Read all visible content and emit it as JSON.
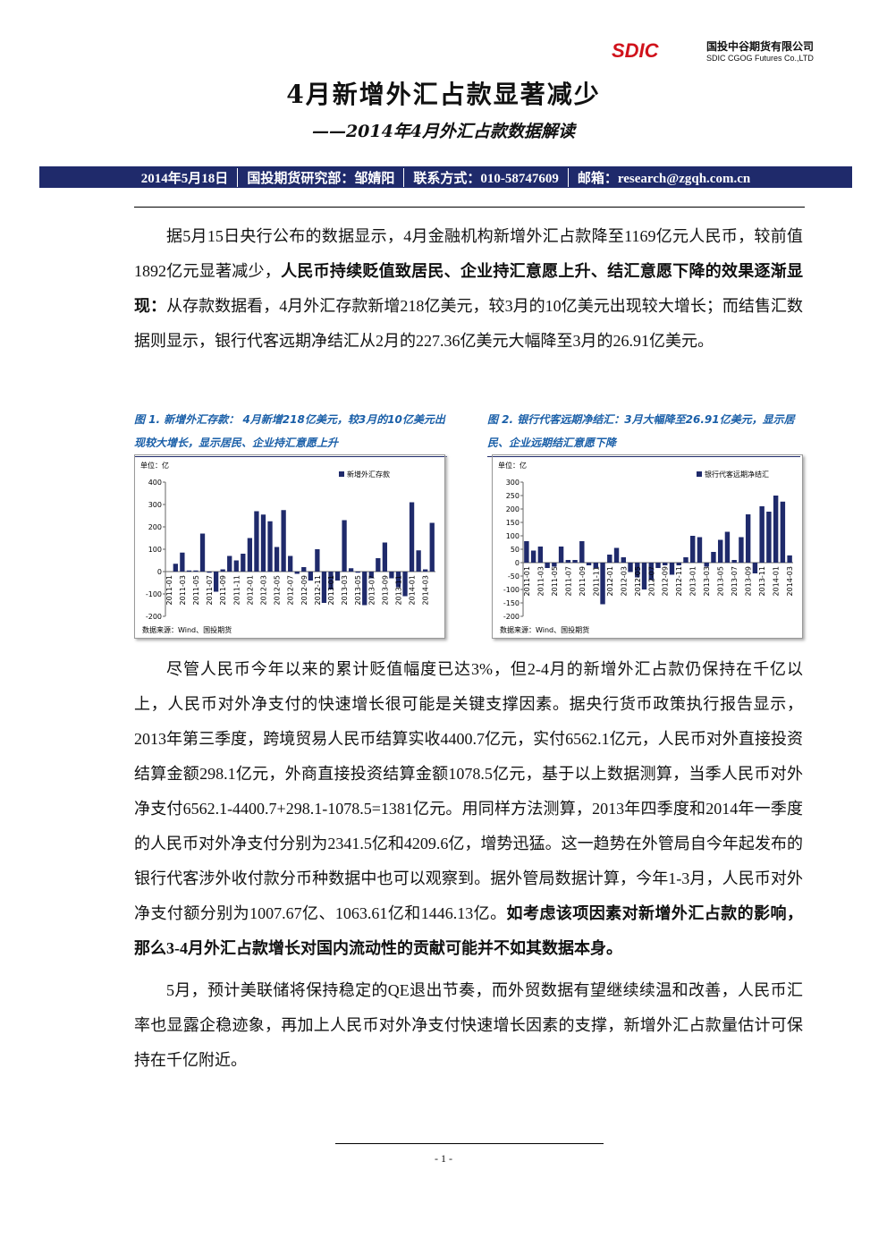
{
  "header": {
    "logo": "SDIC",
    "company_cn": "国投中谷期货有限公司",
    "company_en": "SDIC CGOG Futures Co.,LTD"
  },
  "title": "4月新增外汇占款显著减少",
  "subtitle": "——2014年4月外汇占款数据解读",
  "info_bar": [
    "2014年5月18日",
    "国投期货研究部：邹婧阳",
    "联系方式：010-58747609",
    "邮箱：research@zgqh.com.cn"
  ],
  "body_top": [
    [
      {
        "text": "据5月15日央行公布的数据显示，4月金融机构新增外汇占款降至1169亿元人民币，较前值1892亿元显著减少，"
      },
      {
        "text": "人民币持续贬值致居民、企业持汇意愿上升、结汇意愿下降的效果逐渐显现：",
        "bold": true
      },
      {
        "text": "从存款数据看，4月外汇存款新增218亿美元，较3月的10亿美元出现较大增长；而结售汇数据则显示，银行代客远期净结汇从2月的227.36亿美元大幅降至3月的26.91亿美元。"
      }
    ]
  ],
  "figures": [
    {
      "caption": "图 1. 新增外汇存款： 4月新增218亿美元，较3月的10亿美元出现较大增长，显示居民、企业持汇意愿上升",
      "source": "数据来源：Wind、国投期货",
      "chart": {
        "type": "bar",
        "unit": "单位：亿",
        "ylim": [
          -200,
          400
        ],
        "yticks": [
          -200,
          -100,
          0,
          100,
          200,
          300,
          400
        ],
        "categories": [
          "2011-01",
          null,
          "2011-03",
          null,
          "2011-05",
          null,
          "2011-07",
          null,
          "2011-09",
          null,
          "2011-11",
          null,
          "2012-01",
          null,
          "2012-03",
          null,
          "2012-05",
          null,
          "2012-07",
          null,
          "2012-09",
          null,
          "2012-11",
          null,
          "2013-01",
          null,
          "2013-03",
          null,
          "2013-05",
          null,
          "2013-07",
          null,
          "2013-09",
          null,
          "2013-11",
          null,
          "2014-01",
          null,
          "2014-03",
          null
        ],
        "series": [
          {
            "name": "新增外汇存款",
            "color": "#1f2a6b",
            "values": [
              0,
              35,
              85,
              5,
              5,
              170,
              -5,
              -90,
              10,
              70,
              50,
              80,
              150,
              270,
              255,
              225,
              110,
              275,
              70,
              -10,
              20,
              -40,
              100,
              -140,
              -80,
              -40,
              230,
              15,
              -5,
              -150,
              -30,
              60,
              130,
              -30,
              -70,
              -110,
              310,
              95,
              10,
              218
            ]
          }
        ]
      }
    },
    {
      "caption": "图 2. 银行代客远期净结汇：3月大幅降至26.91亿美元，显示居民、企业远期结汇意愿下降",
      "source": "数据来源：Wind、国投期货",
      "chart": {
        "type": "bar",
        "unit": "单位：亿",
        "ylim": [
          -200,
          300
        ],
        "yticks": [
          -200,
          -150,
          -100,
          -50,
          0,
          50,
          100,
          150,
          200,
          250,
          300
        ],
        "categories": [
          "2011-01",
          null,
          "2011-03",
          null,
          "2011-05",
          null,
          "2011-07",
          null,
          "2011-09",
          null,
          "2011-11",
          null,
          "2012-01",
          null,
          "2012-03",
          null,
          "2012-05",
          null,
          "2012-07",
          null,
          "2012-09",
          null,
          "2012-11",
          null,
          "2013-01",
          null,
          "2013-03",
          null,
          "2013-05",
          null,
          "2013-07",
          null,
          "2013-09",
          null,
          "2013-11",
          null,
          "2014-01",
          null,
          "2014-03"
        ],
        "series": [
          {
            "name": "银行代客远期净结汇",
            "color": "#1f2a6b",
            "values": [
              80,
              45,
              60,
              -20,
              -15,
              60,
              10,
              10,
              80,
              -10,
              -20,
              -155,
              30,
              55,
              20,
              -35,
              -55,
              -100,
              -65,
              -20,
              -10,
              -45,
              -10,
              20,
              100,
              95,
              -15,
              40,
              85,
              115,
              10,
              95,
              180,
              -40,
              210,
              190,
              250,
              227.36,
              26.91
            ]
          }
        ]
      }
    }
  ],
  "body_bottom": [
    [
      {
        "text": "尽管人民币今年以来的累计贬值幅度已达3%，但2-4月的新增外汇占款仍保持在千亿以上，人民币对外净支付的快速增长很可能是关键支撑因素。据央行货币政策执行报告显示，2013年第三季度，跨境贸易人民币结算实收4400.7亿元，实付6562.1亿元，人民币对外直接投资结算金额298.1亿元，外商直接投资结算金额1078.5亿元，基于以上数据测算，当季人民币对外净支付6562.1-4400.7+298.1-1078.5=1381亿元。用同样方法测算，2013年四季度和2014年一季度的人民币对外净支付分别为2341.5亿和4209.6亿，增势迅猛。这一趋势在外管局自今年起发布的银行代客涉外收付款分币种数据中也可以观察到。据外管局数据计算，今年1-3月，人民币对外净支付额分别为1007.67亿、1063.61亿和1446.13亿。"
      },
      {
        "text": "如考虑该项因素对新增外汇占款的影响，那么3-4月外汇占款增长对国内流动性的贡献可能并不如其数据本身。",
        "bold": true
      }
    ],
    [
      {
        "text": "5月，预计美联储将保持稳定的QE退出节奏，而外贸数据有望继续续温和改善，人民币汇率也显露企稳迹象，再加上人民币对外净支付快速增长因素的支撑，新增外汇占款量估计可保持在千亿附近。"
      }
    ]
  ],
  "footer": {
    "page": "- 1 -"
  }
}
